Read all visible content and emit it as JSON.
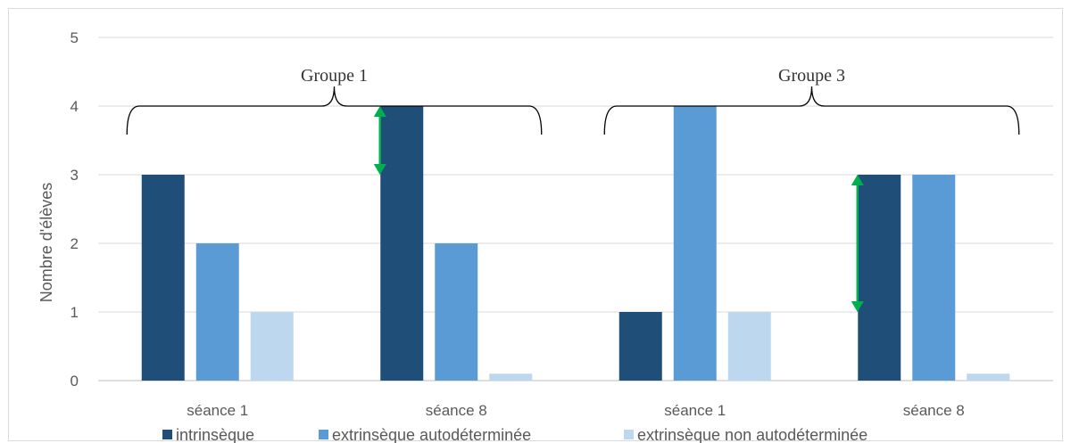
{
  "chart_data": {
    "type": "bar",
    "ylabel": "Nombre d'élèves",
    "xlabel": "",
    "ylim": [
      0,
      5
    ],
    "yticks": [
      0,
      1,
      2,
      3,
      4,
      5
    ],
    "grid": true,
    "legend_position": "bottom",
    "categories": [
      "séance 1",
      "séance 8",
      "séance 1",
      "séance 8"
    ],
    "series": [
      {
        "name": "intrinsèque",
        "color": "#1f4e79",
        "values": [
          3,
          4,
          1,
          3
        ]
      },
      {
        "name": "extrinsèque autodéterminée",
        "color": "#5b9bd5",
        "values": [
          2,
          2,
          4,
          3
        ]
      },
      {
        "name": "extrinsèque non autodéterminée",
        "color": "#bdd7ee",
        "values": [
          1,
          0.1,
          1,
          0.1
        ]
      }
    ],
    "annotations": {
      "groups": [
        {
          "label": "Groupe 1",
          "categories": [
            0,
            1
          ]
        },
        {
          "label": "Groupe 3",
          "categories": [
            2,
            3
          ]
        }
      ],
      "arrows": [
        {
          "color": "#00b050",
          "category": 1,
          "from": 3,
          "to": 4
        },
        {
          "color": "#00b050",
          "category": 3,
          "from": 1,
          "to": 3
        }
      ]
    }
  }
}
